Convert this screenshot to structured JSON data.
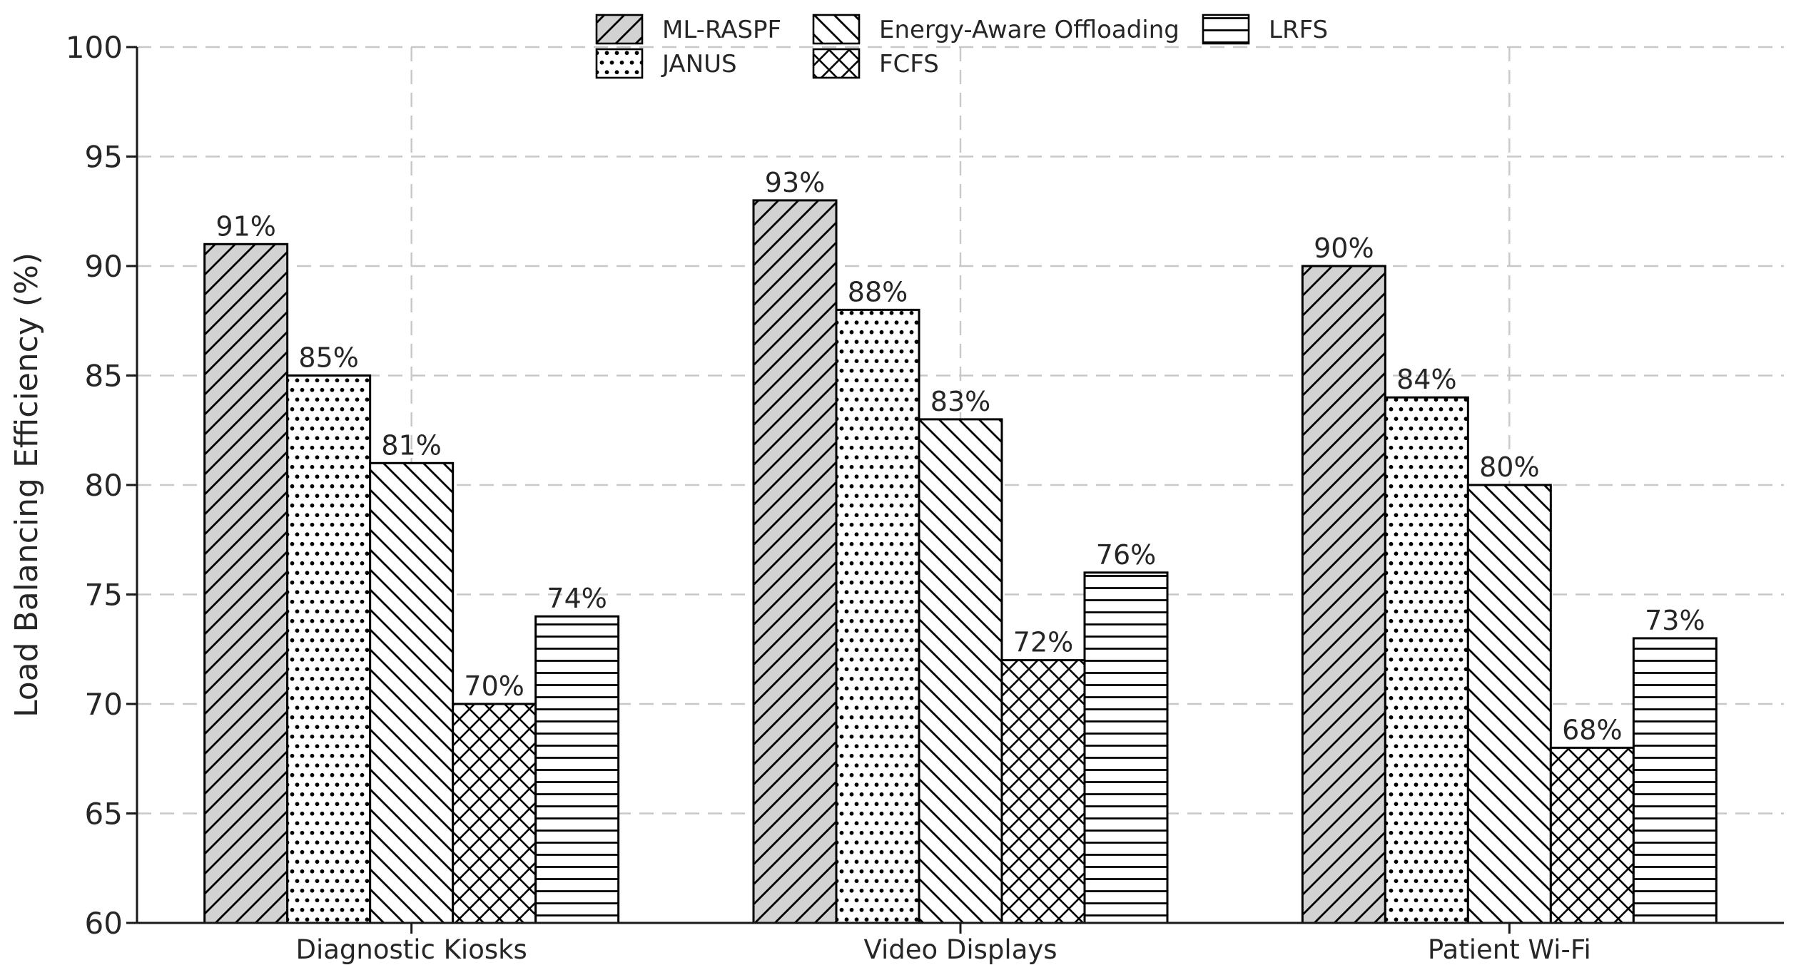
{
  "chart_data": {
    "type": "bar",
    "title": "",
    "categories": [
      "Diagnostic Kiosks",
      "Video Displays",
      "Patient Wi-Fi"
    ],
    "series": [
      {
        "name": "ML-RASPF",
        "values": [
          91,
          93,
          90
        ],
        "fill": "#d2d2d2",
        "hatch": "diagonal-forward"
      },
      {
        "name": "JANUS",
        "values": [
          85,
          88,
          84
        ],
        "fill": "#ffffff",
        "hatch": "dots"
      },
      {
        "name": "Energy-Aware Offloading",
        "values": [
          81,
          83,
          80
        ],
        "fill": "#ffffff",
        "hatch": "diagonal-back"
      },
      {
        "name": "FCFS",
        "values": [
          70,
          72,
          68
        ],
        "fill": "#ffffff",
        "hatch": "crosshatch"
      },
      {
        "name": "LRFS",
        "values": [
          74,
          76,
          73
        ],
        "fill": "#ffffff",
        "hatch": "horizontal-lines"
      }
    ],
    "value_labels": [
      [
        "91%",
        "93%",
        "90%"
      ],
      [
        "85%",
        "88%",
        "84%"
      ],
      [
        "81%",
        "83%",
        "80%"
      ],
      [
        "70%",
        "72%",
        "68%"
      ],
      [
        "74%",
        "76%",
        "73%"
      ]
    ],
    "xlabel": "",
    "ylabel": "Load Balancing Efficiency (%)",
    "ylim": [
      60,
      100
    ],
    "yticks": [
      60,
      65,
      70,
      75,
      80,
      85,
      90,
      95,
      100
    ],
    "value_suffix": "%",
    "grid": true,
    "legend_position": "top-center",
    "legend_rows": 2,
    "legend_order": [
      "ML-RASPF",
      "JANUS",
      "Energy-Aware Offloading",
      "FCFS",
      "LRFS"
    ],
    "colors": {
      "bar_edge": "#000000",
      "hatch": "#000000",
      "grid": "#c8c8c8",
      "text": "#262626",
      "axis": "#1a1a1a",
      "background": "#ffffff"
    }
  }
}
